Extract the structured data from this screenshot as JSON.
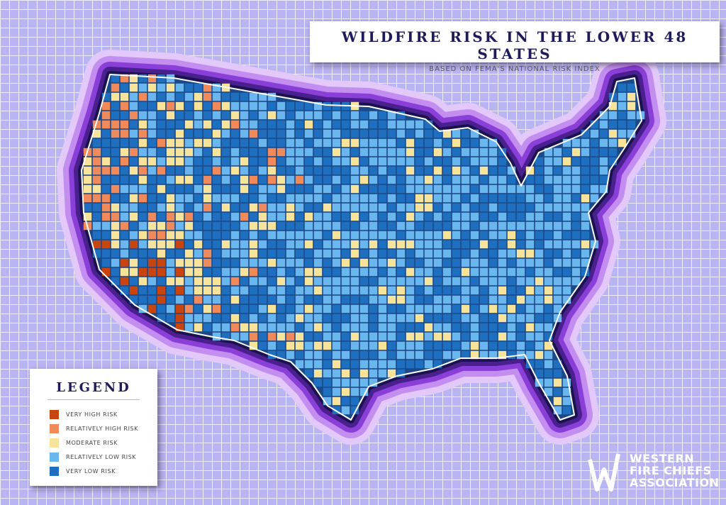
{
  "title": "WILDFIRE RISK IN THE LOWER 48 STATES",
  "subtitle": "BASED ON FEMA'S NATIONAL RISK INDEX",
  "legend": {
    "title": "LEGEND",
    "items": [
      {
        "label": "VERY HIGH RISK",
        "color": "#c8450f"
      },
      {
        "label": "RELATIVELY HIGH RISK",
        "color": "#f08a5a"
      },
      {
        "label": "MODERATE RISK",
        "color": "#f8e39a"
      },
      {
        "label": "RELATIVELY LOW RISK",
        "color": "#6ab7ef"
      },
      {
        "label": "VERY LOW RISK",
        "color": "#1f6fc0"
      }
    ]
  },
  "logo": {
    "lines": [
      "WESTERN",
      "FIRE CHIEFS",
      "ASSOCIATION"
    ]
  }
}
